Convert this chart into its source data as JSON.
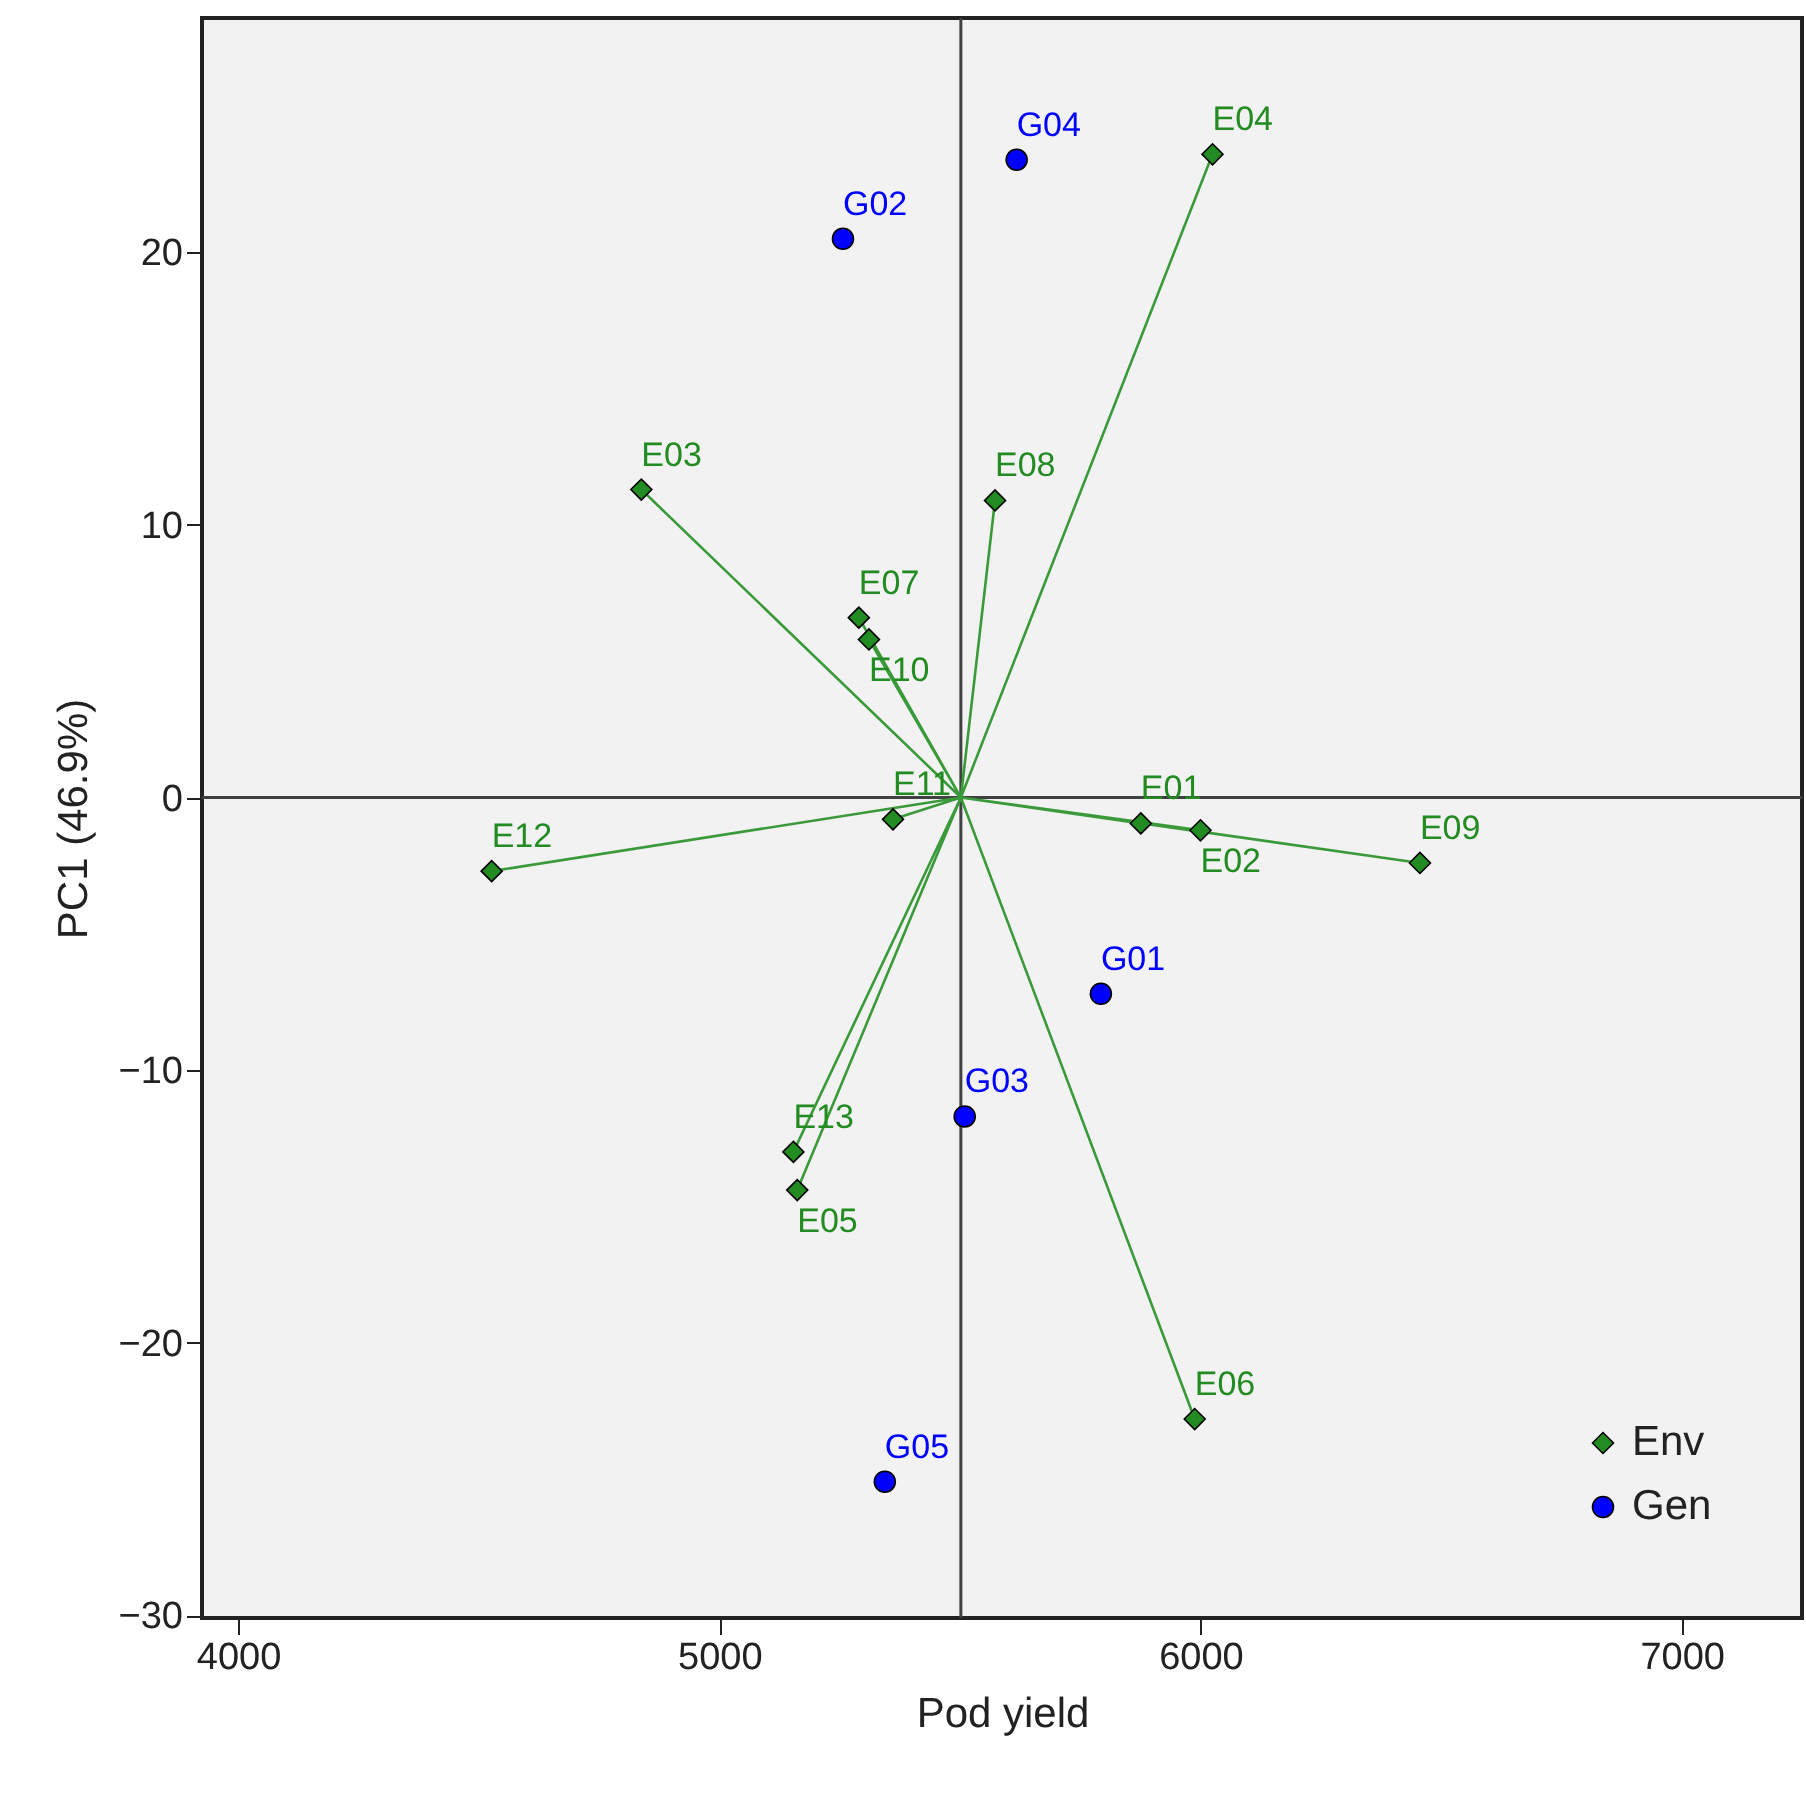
{
  "chart_data": {
    "type": "scatter",
    "xlabel": "Pod yield",
    "ylabel": "PC1 (46.9%)",
    "xlim": [
      3925,
      7250
    ],
    "ylim": [
      -30.1,
      28.6
    ],
    "xticks": [
      4000,
      5000,
      6000,
      7000
    ],
    "yticks": [
      -30,
      -20,
      -10,
      0,
      10,
      20
    ],
    "grid": false,
    "legend": "bottom right",
    "series": [
      {
        "name": "Env",
        "marker": "diamond",
        "color": "#228b22",
        "x": [
          5876,
          6000,
          4838,
          6025,
          5162,
          5988,
          5290,
          5573,
          6456,
          5311,
          5361,
          4527,
          5154
        ],
        "values": [
          -0.95,
          -1.2,
          11.3,
          23.6,
          -14.4,
          -22.8,
          6.6,
          10.9,
          -2.4,
          5.8,
          -0.8,
          -2.7,
          -13.0
        ]
      },
      {
        "name": "Gen",
        "marker": "circle",
        "color": "#0000ff",
        "x": [
          5793,
          5257,
          5510,
          5618,
          5344
        ],
        "values": [
          -7.2,
          20.5,
          -11.7,
          23.4,
          -25.1
        ]
      },
      {
        "type": "line",
        "color": "#3a9a3a",
        "x": [
          5502,
          5876,
          5502,
          6000,
          5502,
          4838,
          5502,
          6025,
          5502,
          5162,
          5502,
          5988,
          5502,
          5290,
          5502,
          5573,
          5502,
          6456,
          5502,
          5311,
          5502,
          5361,
          5502,
          4527,
          5502,
          5154
        ],
        "values": [
          0,
          -0.95,
          0,
          -1.2,
          0,
          11.3,
          0,
          23.6,
          0,
          -14.4,
          0,
          -22.8,
          0,
          6.6,
          0,
          10.9,
          0,
          -2.4,
          0,
          5.8,
          0,
          -0.8,
          0,
          -2.7,
          0,
          -13.0
        ]
      }
    ],
    "ref_lines": [
      {
        "axis": "x",
        "value": 5502,
        "color": "#404040"
      },
      {
        "axis": "y",
        "value": 0,
        "color": "#404040"
      }
    ],
    "annotations": [
      {
        "text": "E01",
        "x": 5876,
        "y": -0.95
      },
      {
        "text": "E02",
        "x": 6000,
        "y": -1.2
      },
      {
        "text": "E03",
        "x": 4838,
        "y": 11.3
      },
      {
        "text": "E04",
        "x": 6025,
        "y": 23.6
      },
      {
        "text": "E05",
        "x": 5162,
        "y": -14.4
      },
      {
        "text": "E06",
        "x": 5988,
        "y": -22.8
      },
      {
        "text": "E07",
        "x": 5290,
        "y": 6.6
      },
      {
        "text": "E08",
        "x": 5573,
        "y": 10.9
      },
      {
        "text": "E09",
        "x": 6456,
        "y": -2.4
      },
      {
        "text": "E10",
        "x": 5311,
        "y": 5.8
      },
      {
        "text": "E11",
        "x": 5361,
        "y": -0.8
      },
      {
        "text": "E12",
        "x": 4527,
        "y": -2.7
      },
      {
        "text": "E13",
        "x": 5154,
        "y": -13.0
      },
      {
        "text": "G01",
        "x": 5793,
        "y": -7.2
      },
      {
        "text": "G02",
        "x": 5257,
        "y": 20.5
      },
      {
        "text": "G03",
        "x": 5510,
        "y": -11.7
      },
      {
        "text": "G04",
        "x": 5618,
        "y": 23.4
      },
      {
        "text": "G05",
        "x": 5344,
        "y": -25.1
      }
    ]
  }
}
